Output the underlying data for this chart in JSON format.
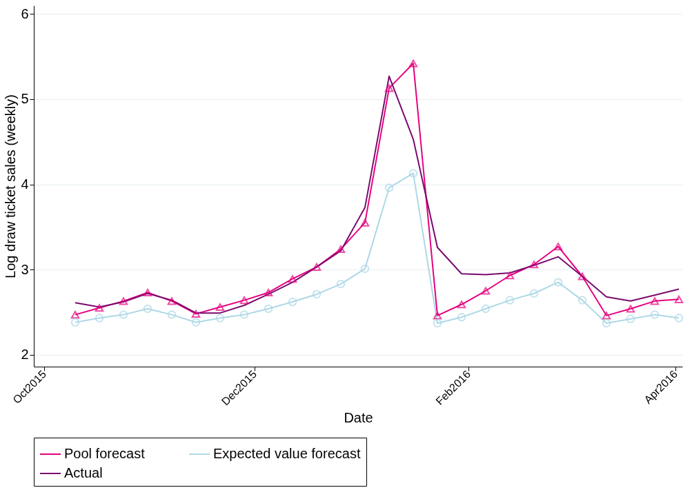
{
  "chart_data": {
    "type": "line",
    "xlabel": "Date",
    "ylabel": "Log draw ticket sales (weekly)",
    "x": [
      "2015-10-10",
      "2015-10-17",
      "2015-10-24",
      "2015-10-31",
      "2015-11-07",
      "2015-11-14",
      "2015-11-21",
      "2015-11-28",
      "2015-12-05",
      "2015-12-12",
      "2015-12-19",
      "2015-12-26",
      "2016-01-02",
      "2016-01-09",
      "2016-01-16",
      "2016-01-23",
      "2016-01-30",
      "2016-02-06",
      "2016-02-13",
      "2016-02-20",
      "2016-02-27",
      "2016-03-05",
      "2016-03-12",
      "2016-03-19",
      "2016-03-26",
      "2016-04-02"
    ],
    "series": [
      {
        "name": "Pool forecast",
        "color": "#e6007e",
        "marker": "triangle",
        "values": [
          2.47,
          2.55,
          2.63,
          2.73,
          2.63,
          2.48,
          2.56,
          2.64,
          2.73,
          2.89,
          3.03,
          3.24,
          3.55,
          5.13,
          5.42,
          2.46,
          2.59,
          2.75,
          2.93,
          3.06,
          3.27,
          2.92,
          2.46,
          2.54,
          2.63,
          2.65
        ]
      },
      {
        "name": "Expected value forecast",
        "color": "#add8e6",
        "marker": "circle",
        "values": [
          2.38,
          2.43,
          2.47,
          2.54,
          2.47,
          2.38,
          2.43,
          2.47,
          2.54,
          2.62,
          2.71,
          2.83,
          3.01,
          3.96,
          4.13,
          2.37,
          2.44,
          2.54,
          2.64,
          2.72,
          2.85,
          2.64,
          2.37,
          2.42,
          2.47,
          2.43
        ]
      },
      {
        "name": "Actual",
        "color": "#7b0a6e",
        "marker": "none",
        "values": [
          2.61,
          2.56,
          2.62,
          2.72,
          2.64,
          2.49,
          2.49,
          2.58,
          2.71,
          2.85,
          3.03,
          3.22,
          3.73,
          5.27,
          4.53,
          3.26,
          2.95,
          2.94,
          2.96,
          3.05,
          3.15,
          2.92,
          2.68,
          2.63,
          2.7,
          2.77
        ]
      }
    ],
    "xlim": [
      "2015-09-28",
      "2016-04-03"
    ],
    "xticks": [
      {
        "value": "2015-10-01",
        "label": "Oct2015"
      },
      {
        "value": "2015-12-01",
        "label": "Dec2015"
      },
      {
        "value": "2016-02-01",
        "label": "Feb2016"
      },
      {
        "value": "2016-04-01",
        "label": "Apr2016"
      }
    ],
    "ylim": [
      1.86,
      6.1
    ],
    "yticks": [
      2,
      3,
      4,
      5,
      6
    ],
    "grid": "y",
    "legend": "bottom",
    "line_style": "solid"
  }
}
